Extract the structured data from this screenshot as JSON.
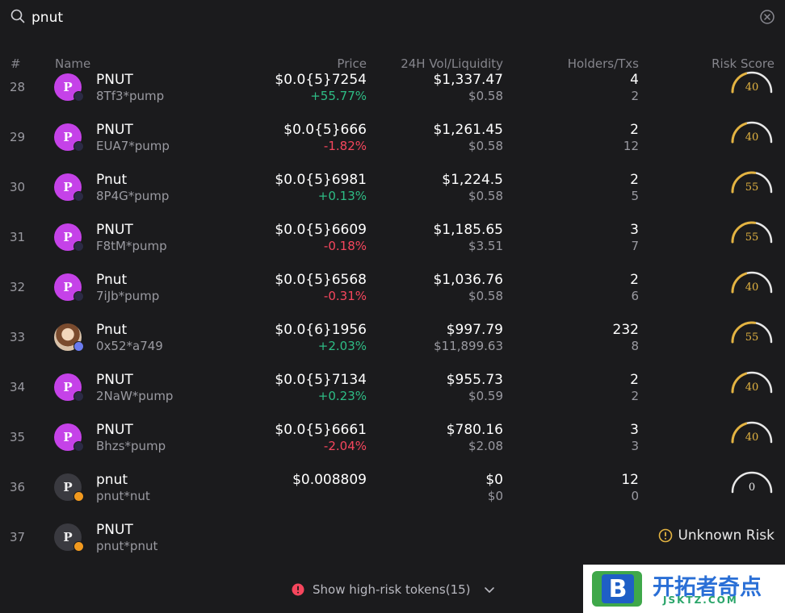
{
  "search": {
    "value": "pnut",
    "placeholder": ""
  },
  "columns": {
    "rank": "#",
    "name": "Name",
    "price": "Price",
    "volume_liquidity": "24H Vol/Liquidity",
    "holders_txs": "Holders/Txs",
    "risk_score": "Risk Score"
  },
  "rows": [
    {
      "rank": "28",
      "name": "PNUT",
      "address": "8Tf3*pump",
      "price": "$0.0{5}7254",
      "change": "+55.77%",
      "direction": "up",
      "volume": "$1,337.47",
      "liquidity": "$0.58",
      "holders": "4",
      "txs": "2",
      "risk": "40",
      "risk_level": 0.4,
      "avatar": "P",
      "avatar_style": "purple",
      "chain_icon": "solana-icon"
    },
    {
      "rank": "29",
      "name": "PNUT",
      "address": "EUA7*pump",
      "price": "$0.0{5}666",
      "change": "-1.82%",
      "direction": "down",
      "volume": "$1,261.45",
      "liquidity": "$0.58",
      "holders": "2",
      "txs": "12",
      "risk": "40",
      "risk_level": 0.4,
      "avatar": "P",
      "avatar_style": "purple",
      "chain_icon": "solana-icon"
    },
    {
      "rank": "30",
      "name": "Pnut",
      "address": "8P4G*pump",
      "price": "$0.0{5}6981",
      "change": "+0.13%",
      "direction": "up",
      "volume": "$1,224.5",
      "liquidity": "$0.58",
      "holders": "2",
      "txs": "5",
      "risk": "55",
      "risk_level": 0.55,
      "avatar": "P",
      "avatar_style": "purple",
      "chain_icon": "solana-icon"
    },
    {
      "rank": "31",
      "name": "PNUT",
      "address": "F8tM*pump",
      "price": "$0.0{5}6609",
      "change": "-0.18%",
      "direction": "down",
      "volume": "$1,185.65",
      "liquidity": "$3.51",
      "holders": "3",
      "txs": "7",
      "risk": "55",
      "risk_level": 0.55,
      "avatar": "P",
      "avatar_style": "purple",
      "chain_icon": "solana-icon"
    },
    {
      "rank": "32",
      "name": "Pnut",
      "address": "7iJb*pump",
      "price": "$0.0{5}6568",
      "change": "-0.31%",
      "direction": "down",
      "volume": "$1,036.76",
      "liquidity": "$0.58",
      "holders": "2",
      "txs": "6",
      "risk": "40",
      "risk_level": 0.4,
      "avatar": "P",
      "avatar_style": "purple",
      "chain_icon": "solana-icon"
    },
    {
      "rank": "33",
      "name": "Pnut",
      "address": "0x52*a749",
      "price": "$0.0{6}1956",
      "change": "+2.03%",
      "direction": "up",
      "volume": "$997.79",
      "liquidity": "$11,899.63",
      "holders": "232",
      "txs": "8",
      "risk": "55",
      "risk_level": 0.55,
      "avatar": "",
      "avatar_style": "photo",
      "chain_icon": "ethereum-icon"
    },
    {
      "rank": "34",
      "name": "PNUT",
      "address": "2NaW*pump",
      "price": "$0.0{5}7134",
      "change": "+0.23%",
      "direction": "up",
      "volume": "$955.73",
      "liquidity": "$0.59",
      "holders": "2",
      "txs": "2",
      "risk": "40",
      "risk_level": 0.4,
      "avatar": "P",
      "avatar_style": "purple",
      "chain_icon": "solana-icon"
    },
    {
      "rank": "35",
      "name": "PNUT",
      "address": "Bhzs*pump",
      "price": "$0.0{5}6661",
      "change": "-2.04%",
      "direction": "down",
      "volume": "$780.16",
      "liquidity": "$2.08",
      "holders": "3",
      "txs": "3",
      "risk": "40",
      "risk_level": 0.4,
      "avatar": "P",
      "avatar_style": "purple",
      "chain_icon": "solana-icon"
    },
    {
      "rank": "36",
      "name": "pnut",
      "address": "pnut*nut",
      "price": "$0.008809",
      "change": "",
      "direction": "none",
      "volume": "$0",
      "liquidity": "$0",
      "holders": "12",
      "txs": "0",
      "risk": "0",
      "risk_level": 0,
      "avatar": "P",
      "avatar_style": "dark",
      "chain_icon": "bitcoin-icon"
    },
    {
      "rank": "37",
      "name": "PNUT",
      "address": "pnut*pnut",
      "price": "",
      "change": "",
      "direction": "none",
      "volume": "",
      "liquidity": "",
      "holders": "",
      "txs": "",
      "risk": "",
      "risk_label": "Unknown Risk",
      "avatar": "P",
      "avatar_style": "dark",
      "chain_icon": "bitcoin-icon"
    }
  ],
  "footer": {
    "show_high_risk": "Show high-risk tokens(15)"
  },
  "watermark": {
    "title": "开拓者奇点",
    "subtitle": "JSKTZ.COM",
    "logo_letter": "B"
  },
  "colors": {
    "background": "#1b1b1d",
    "positive": "#2ebd85",
    "negative": "#f6465d",
    "risk_gold": "#e3b341",
    "avatar_purple": "#c542e8"
  }
}
